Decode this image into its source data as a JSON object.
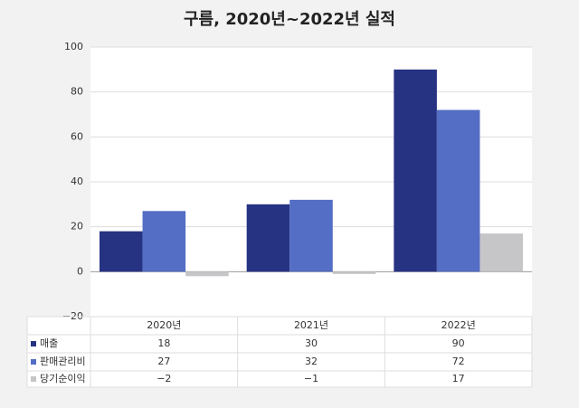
{
  "chart_data": {
    "type": "bar",
    "title": "구름, 2020년~2022년 실적",
    "categories": [
      "2020년",
      "2021년",
      "2022년"
    ],
    "series": [
      {
        "name": "매출",
        "color": "#263282",
        "values": [
          18,
          30,
          90
        ]
      },
      {
        "name": "판매관리비",
        "color": "#536ec4",
        "values": [
          27,
          32,
          72
        ]
      },
      {
        "name": "당기순이익",
        "color": "#c6c6c8",
        "values": [
          -2,
          -1,
          17
        ],
        "value_labels": [
          "−2",
          "−1",
          "17"
        ]
      }
    ],
    "ylim": [
      -20,
      100
    ],
    "yticks": [
      {
        "value": -20,
        "label": "−20"
      },
      0,
      20,
      40,
      60,
      80,
      100
    ],
    "grid": true
  }
}
